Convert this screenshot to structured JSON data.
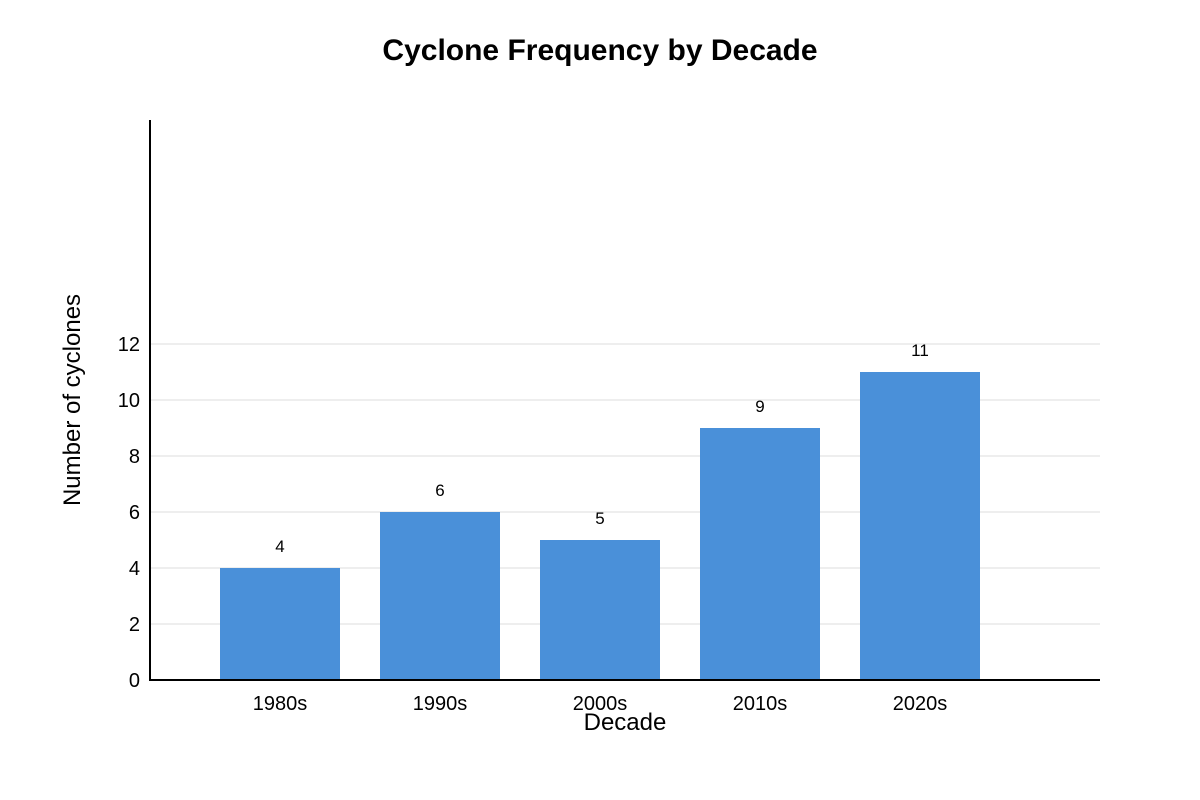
{
  "chart_data": {
    "type": "bar",
    "title": "Cyclone Frequency by Decade",
    "xlabel": "Decade",
    "ylabel": "Number of cyclones",
    "categories": [
      "1980s",
      "1990s",
      "2000s",
      "2010s",
      "2020s"
    ],
    "values": [
      4,
      6,
      5,
      9,
      11
    ],
    "data_labels": [
      "4",
      "6",
      "5",
      "9",
      "11"
    ],
    "yticks": [
      0,
      2,
      4,
      6,
      8,
      10,
      12
    ],
    "ylim": [
      0,
      12
    ],
    "grid": true,
    "legend": "none",
    "bar_color": "#4a90d9"
  }
}
